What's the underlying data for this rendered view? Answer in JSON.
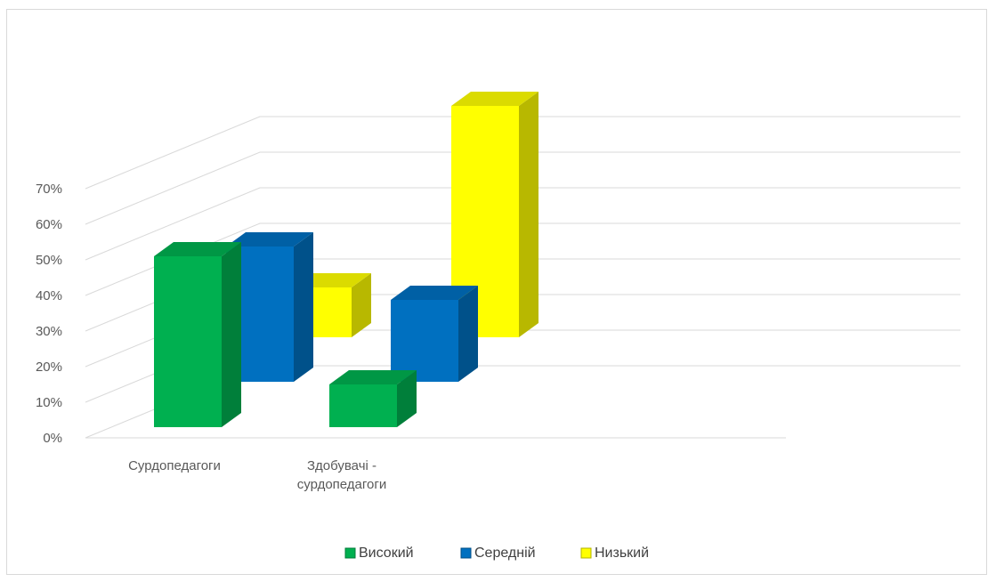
{
  "chart_data": {
    "type": "bar",
    "subtype": "3d-clustered-column",
    "title": "",
    "xlabel": "",
    "ylabel": "",
    "ylim": [
      0,
      0.7
    ],
    "y_ticks": [
      0,
      0.1,
      0.2,
      0.3,
      0.4,
      0.5,
      0.6,
      0.7
    ],
    "y_tick_labels": [
      "0%",
      "10%",
      "20%",
      "30%",
      "40%",
      "50%",
      "60%",
      "70%"
    ],
    "categories": [
      [
        "Сурдопедагоги"
      ],
      [
        "Здобувачі -",
        "сурдопедагоги"
      ]
    ],
    "series": [
      {
        "name": "Високий",
        "values": [
          0.48,
          0.12
        ],
        "color": "#00b050"
      },
      {
        "name": "Середній",
        "values": [
          0.38,
          0.23
        ],
        "color": "#0070c0"
      },
      {
        "name": "Низький",
        "values": [
          0.14,
          0.65
        ],
        "color": "#ffff00"
      }
    ],
    "legend_position": "bottom",
    "grid": true
  }
}
